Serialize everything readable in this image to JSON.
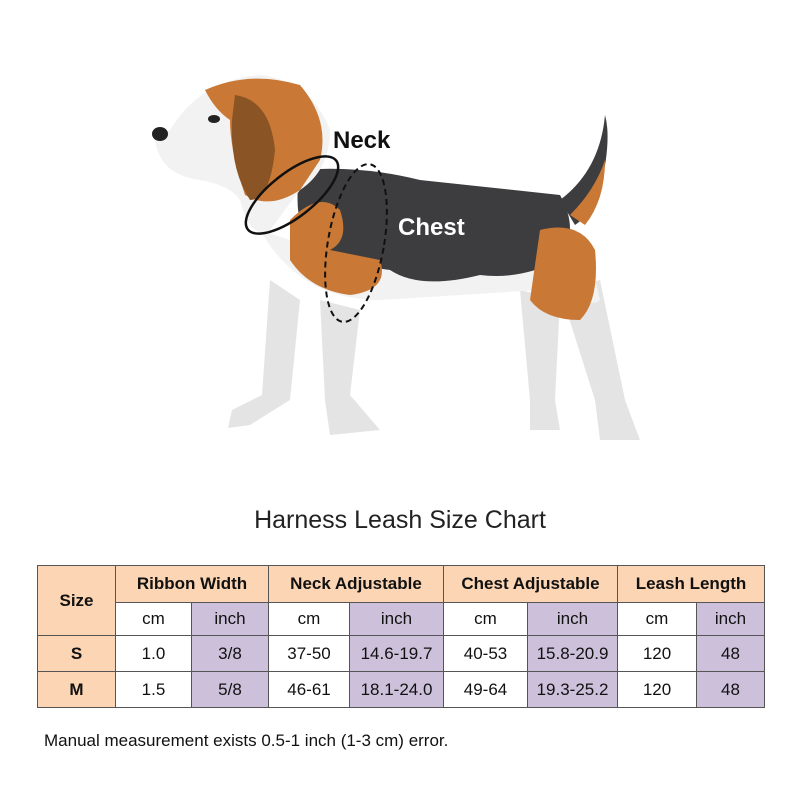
{
  "image": {
    "labels": {
      "neck": "Neck",
      "chest": "Chest"
    }
  },
  "title": "Harness Leash Size Chart",
  "table": {
    "size_header": "Size",
    "groups": [
      "Ribbon Width",
      "Neck Adjustable",
      "Chest Adjustable",
      "Leash Length"
    ],
    "units": [
      "cm",
      "inch",
      "cm",
      "inch",
      "cm",
      "inch",
      "cm",
      "inch"
    ],
    "rows": [
      {
        "size": "S",
        "values": [
          "1.0",
          "3/8",
          "37-50",
          "14.6-19.7",
          "40-53",
          "15.8-20.9",
          "120",
          "48"
        ]
      },
      {
        "size": "M",
        "values": [
          "1.5",
          "5/8",
          "46-61",
          "18.1-24.0",
          "49-64",
          "19.3-25.2",
          "120",
          "48"
        ]
      }
    ]
  },
  "note": "Manual measurement exists 0.5-1 inch (1-3 cm) error.",
  "colors": {
    "header": "#fcd5b4",
    "inch_column": "#ccc0da"
  }
}
